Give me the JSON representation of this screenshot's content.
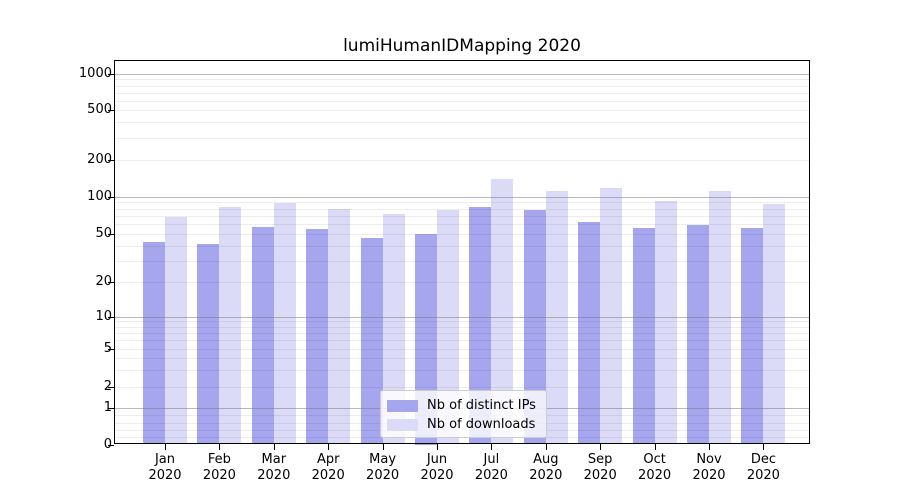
{
  "chart_data": {
    "type": "bar",
    "title": "lumiHumanIDMapping 2020",
    "categories": [
      "Jan",
      "Feb",
      "Mar",
      "Apr",
      "May",
      "Jun",
      "Jul",
      "Aug",
      "Sep",
      "Oct",
      "Nov",
      "Dec"
    ],
    "category_year": "2020",
    "series": [
      {
        "name": "Nb of distinct IPs",
        "color": "#a6a6ee",
        "values": [
          43,
          41,
          57,
          55,
          46,
          50,
          82,
          78,
          63,
          56,
          59,
          56
        ]
      },
      {
        "name": "Nb of downloads",
        "color": "#dbdbf8",
        "values": [
          68,
          83,
          89,
          80,
          73,
          78,
          140,
          112,
          117,
          92,
          112,
          87
        ]
      }
    ],
    "xlabel": "",
    "ylabel": "",
    "y_ticks": [
      0,
      1,
      2,
      5,
      10,
      20,
      50,
      100,
      200,
      500,
      1000
    ],
    "ylim": [
      0,
      1300
    ],
    "y_scale": "log above 1, linear between 0 and 1 (asinh-like)",
    "grid": "horizontal major and minor gridlines",
    "legend_position": "inside axes, lower center"
  }
}
